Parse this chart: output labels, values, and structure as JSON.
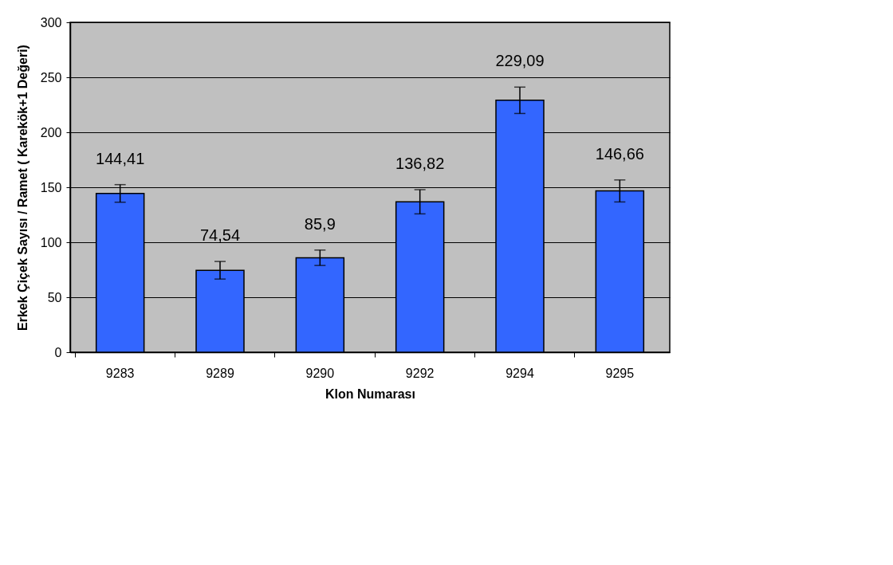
{
  "chart_data": {
    "type": "bar",
    "xlabel": "Klon Numarası",
    "ylabel": "Erkek Çiçek Sayısı / Ramet ( Karekök+1 Değeri)",
    "categories": [
      "9283",
      "9289",
      "9290",
      "9292",
      "9294",
      "9295"
    ],
    "values": [
      144.41,
      74.54,
      85.9,
      136.82,
      229.09,
      146.66
    ],
    "errors": [
      8,
      8,
      7,
      11,
      12,
      10
    ],
    "value_labels": [
      "144,41",
      "74,54",
      "85,9",
      "136,82",
      "229,09",
      "146,66"
    ],
    "color": "#3366ff",
    "ylim": [
      0,
      300
    ],
    "yticks": [
      0,
      50,
      100,
      150,
      200,
      250,
      300
    ],
    "grid": "y"
  }
}
